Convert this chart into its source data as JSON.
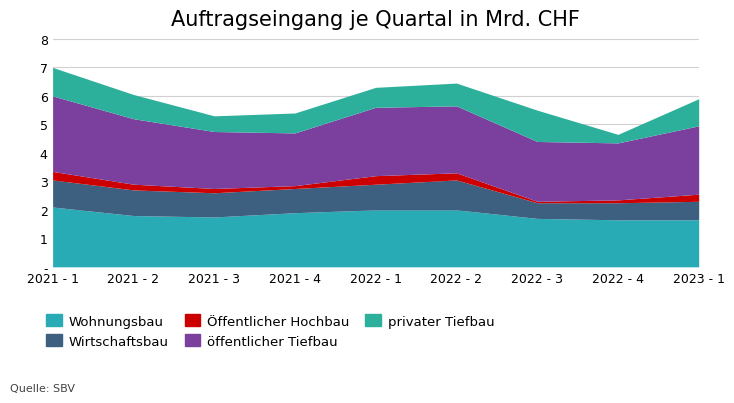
{
  "title": "Auftragseingang je Quartal in Mrd. CHF",
  "source": "Quelle: SBV",
  "categories": [
    "2021 - 1",
    "2021 - 2",
    "2021 - 3",
    "2021 - 4",
    "2022 - 1",
    "2022 - 2",
    "2022 - 3",
    "2022 - 4",
    "2023 - 1"
  ],
  "series": {
    "Wohnungsbau": [
      2.1,
      1.8,
      1.75,
      1.9,
      2.0,
      2.0,
      1.7,
      1.65,
      1.65
    ],
    "Wirtschaftsbau": [
      0.95,
      0.9,
      0.85,
      0.85,
      0.9,
      1.05,
      0.55,
      0.6,
      0.65
    ],
    "Öffentlicher Hochbau": [
      0.3,
      0.2,
      0.15,
      0.1,
      0.3,
      0.25,
      0.05,
      0.1,
      0.25
    ],
    "öffentlicher Tiefbau": [
      2.65,
      2.3,
      2.0,
      1.85,
      2.4,
      2.35,
      2.1,
      2.0,
      2.4
    ],
    "privater Tiefbau": [
      1.0,
      0.85,
      0.55,
      0.7,
      0.7,
      0.8,
      1.1,
      0.3,
      0.95
    ]
  },
  "colors": {
    "Wohnungsbau": "#29ABB6",
    "Wirtschaftsbau": "#3D6080",
    "Öffentlicher Hochbau": "#CC0000",
    "öffentlicher Tiefbau": "#7B3F9E",
    "privater Tiefbau": "#2DB09B"
  },
  "ylim": [
    0,
    8
  ],
  "yticks": [
    0,
    1,
    2,
    3,
    4,
    5,
    6,
    7,
    8
  ],
  "ytick_labels": [
    "-",
    "1",
    "2",
    "3",
    "4",
    "5",
    "6",
    "7",
    "8"
  ],
  "background_color": "#ffffff",
  "title_fontsize": 15,
  "legend_fontsize": 9.5,
  "source_fontsize": 8
}
